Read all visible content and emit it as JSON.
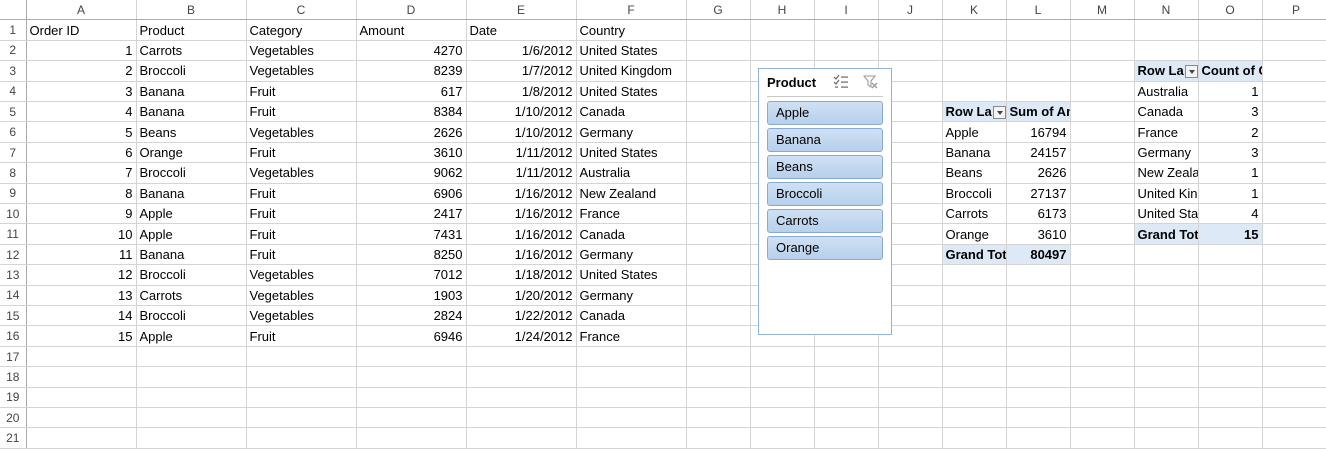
{
  "columns": [
    "A",
    "B",
    "C",
    "D",
    "E",
    "F",
    "G",
    "H",
    "I",
    "J",
    "K",
    "L",
    "M",
    "N",
    "O",
    "P"
  ],
  "rows": [
    {
      "r": "1",
      "A": "Order ID",
      "B": "Product",
      "C": "Category",
      "D": "Amount",
      "E": "Date",
      "F": "Country"
    },
    {
      "r": "2",
      "A": "1",
      "B": "Carrots",
      "C": "Vegetables",
      "D": "4270",
      "E": "1/6/2012",
      "F": "United States"
    },
    {
      "r": "3",
      "A": "2",
      "B": "Broccoli",
      "C": "Vegetables",
      "D": "8239",
      "E": "1/7/2012",
      "F": "United Kingdom",
      "N": "Row La",
      "O": "Count of Category"
    },
    {
      "r": "4",
      "A": "3",
      "B": "Banana",
      "C": "Fruit",
      "D": "617",
      "E": "1/8/2012",
      "F": "United States",
      "N": "Australia",
      "O": "1"
    },
    {
      "r": "5",
      "A": "4",
      "B": "Banana",
      "C": "Fruit",
      "D": "8384",
      "E": "1/10/2012",
      "F": "Canada",
      "K": "Row La",
      "L": "Sum of Amount",
      "N": "Canada",
      "O": "3"
    },
    {
      "r": "6",
      "A": "5",
      "B": "Beans",
      "C": "Vegetables",
      "D": "2626",
      "E": "1/10/2012",
      "F": "Germany",
      "K": "Apple",
      "L": "16794",
      "N": "France",
      "O": "2"
    },
    {
      "r": "7",
      "A": "6",
      "B": "Orange",
      "C": "Fruit",
      "D": "3610",
      "E": "1/11/2012",
      "F": "United States",
      "K": "Banana",
      "L": "24157",
      "N": "Germany",
      "O": "3"
    },
    {
      "r": "8",
      "A": "7",
      "B": "Broccoli",
      "C": "Vegetables",
      "D": "9062",
      "E": "1/11/2012",
      "F": "Australia",
      "K": "Beans",
      "L": "2626",
      "N": "New Zeala",
      "O": "1"
    },
    {
      "r": "9",
      "A": "8",
      "B": "Banana",
      "C": "Fruit",
      "D": "6906",
      "E": "1/16/2012",
      "F": "New Zealand",
      "K": "Broccoli",
      "L": "27137",
      "N": "United Kin",
      "O": "1"
    },
    {
      "r": "10",
      "A": "9",
      "B": "Apple",
      "C": "Fruit",
      "D": "2417",
      "E": "1/16/2012",
      "F": "France",
      "K": "Carrots",
      "L": "6173",
      "N": "United Sta",
      "O": "4"
    },
    {
      "r": "11",
      "A": "10",
      "B": "Apple",
      "C": "Fruit",
      "D": "7431",
      "E": "1/16/2012",
      "F": "Canada",
      "K": "Orange",
      "L": "3610",
      "N": "Grand Tot",
      "O": "15"
    },
    {
      "r": "12",
      "A": "11",
      "B": "Banana",
      "C": "Fruit",
      "D": "8250",
      "E": "1/16/2012",
      "F": "Germany",
      "K": "Grand Tot",
      "L": "80497"
    },
    {
      "r": "13",
      "A": "12",
      "B": "Broccoli",
      "C": "Vegetables",
      "D": "7012",
      "E": "1/18/2012",
      "F": "United States"
    },
    {
      "r": "14",
      "A": "13",
      "B": "Carrots",
      "C": "Vegetables",
      "D": "1903",
      "E": "1/20/2012",
      "F": "Germany"
    },
    {
      "r": "15",
      "A": "14",
      "B": "Broccoli",
      "C": "Vegetables",
      "D": "2824",
      "E": "1/22/2012",
      "F": "Canada"
    },
    {
      "r": "16",
      "A": "15",
      "B": "Apple",
      "C": "Fruit",
      "D": "6946",
      "E": "1/24/2012",
      "F": "France"
    },
    {
      "r": "17"
    },
    {
      "r": "18"
    },
    {
      "r": "19"
    },
    {
      "r": "20"
    },
    {
      "r": "21"
    }
  ],
  "slicer": {
    "title": "Product",
    "items": [
      "Apple",
      "Banana",
      "Beans",
      "Broccoli",
      "Carrots",
      "Orange"
    ],
    "selected_fill": "#b7d0ec"
  }
}
